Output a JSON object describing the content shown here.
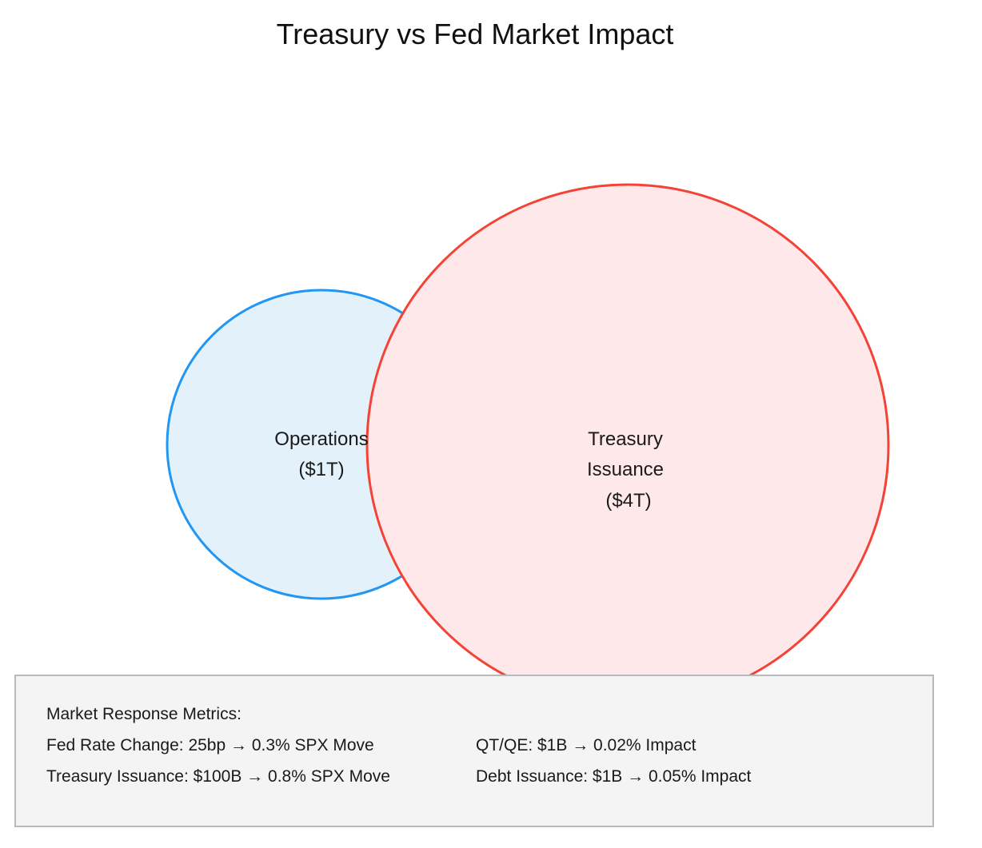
{
  "title": "Treasury vs Fed Market Impact",
  "colors": {
    "fed_stroke": "#2196f3",
    "fed_fill": "#e3f1fb",
    "treasury_stroke": "#f44336",
    "treasury_fill": "#ffe8ea",
    "box_background": "#f4f4f4",
    "box_border": "#b9b9b9"
  },
  "circles": {
    "fed": {
      "label_line1": "Operations",
      "label_line2": "($1T)",
      "value_trillions": 1
    },
    "treasury": {
      "label_line1": "Treasury",
      "label_line2": "Issuance",
      "label_line3": "($4T)",
      "value_trillions": 4
    }
  },
  "metrics": {
    "heading": "Market Response Metrics:",
    "items": [
      "Fed Rate Change: 25bp → 0.3% SPX Move",
      "QT/QE: $1B → 0.02% Impact",
      "Treasury Issuance: $100B → 0.8% SPX Move",
      "Debt Issuance: $1B → 0.05% Impact"
    ]
  }
}
